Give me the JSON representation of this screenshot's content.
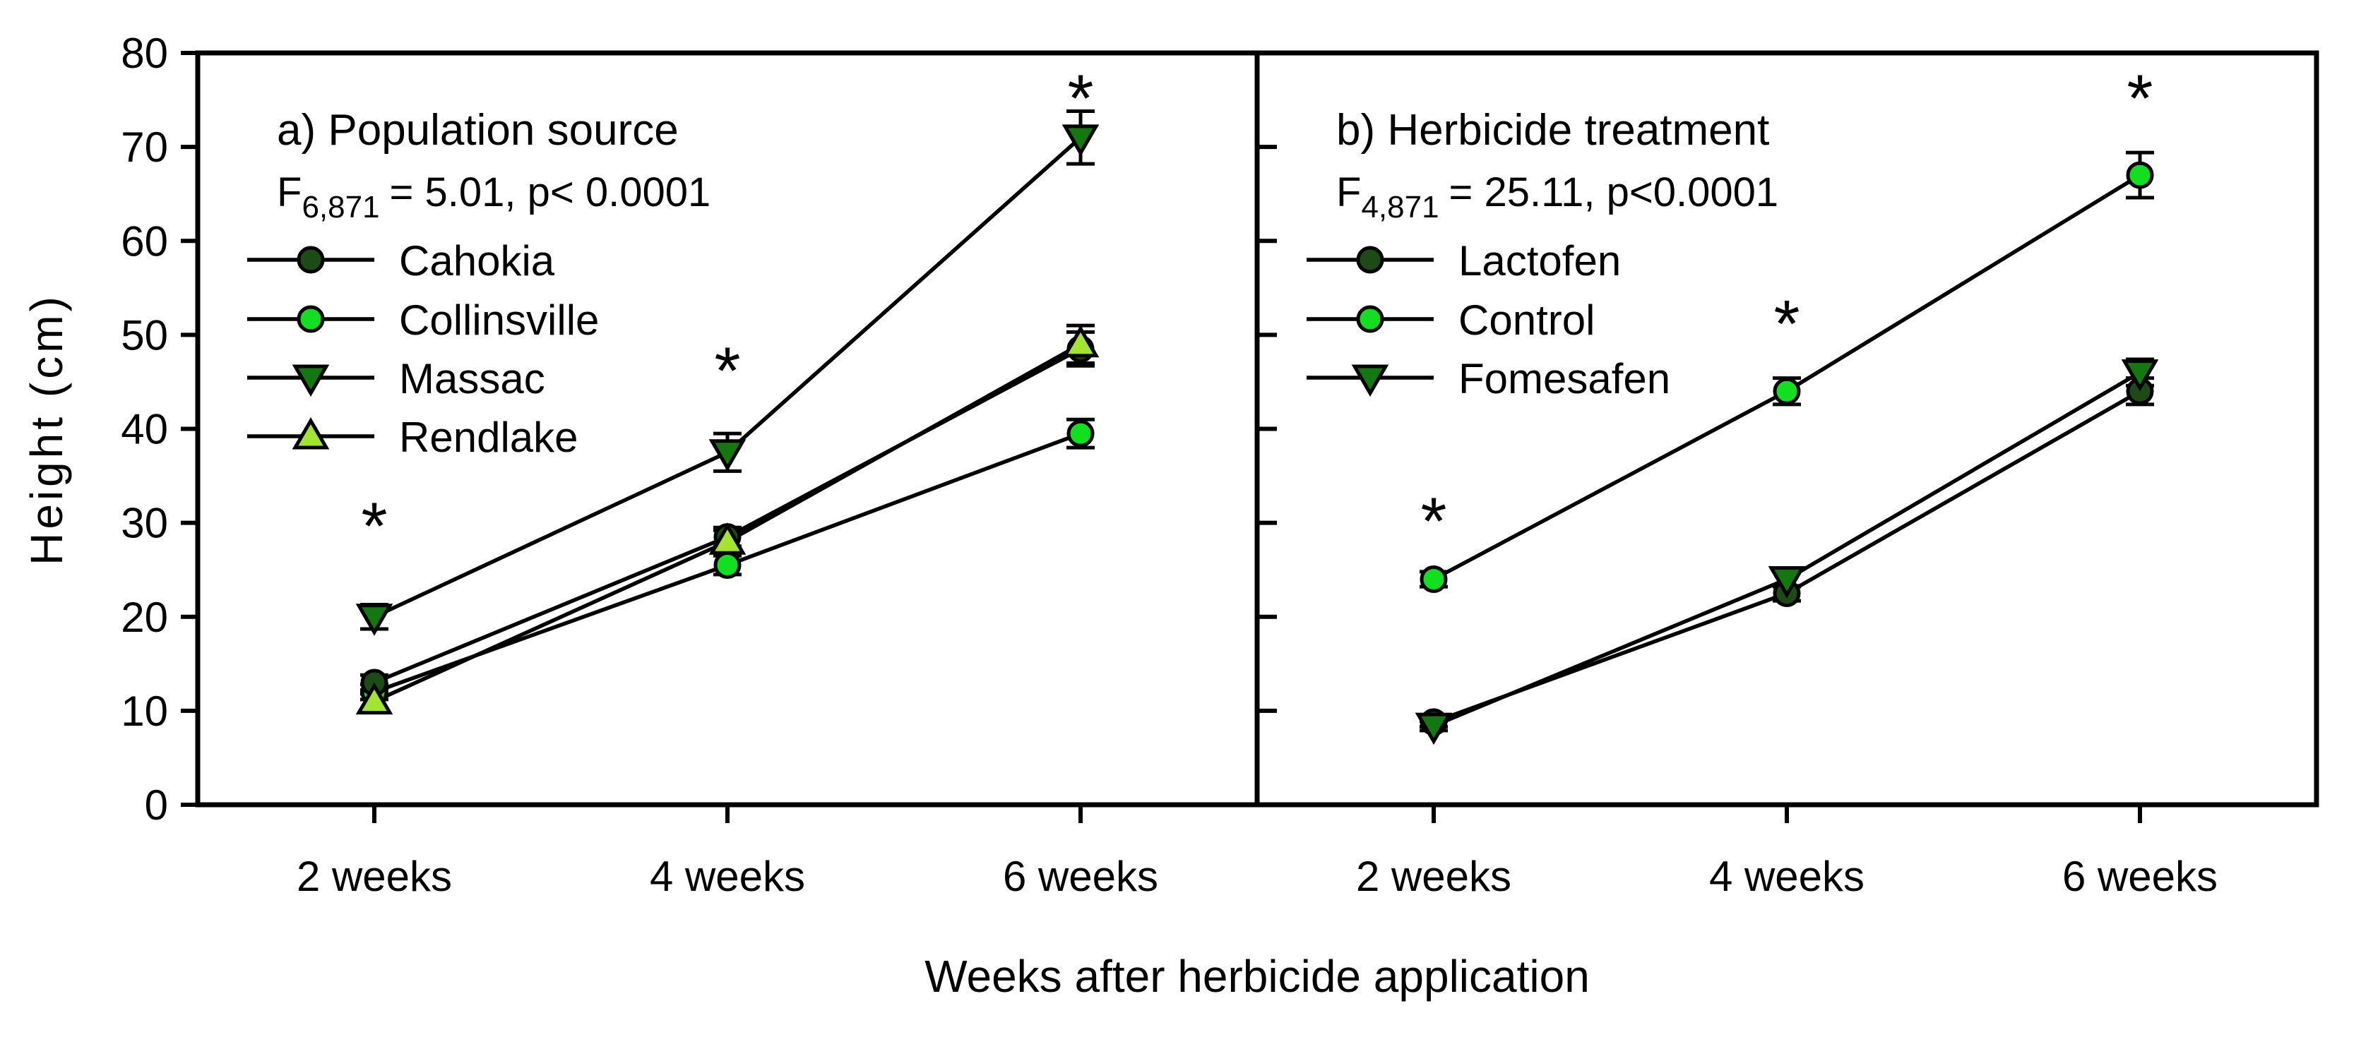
{
  "figure": {
    "y_axis": {
      "label": "Height (cm)",
      "min": 0,
      "max": 80,
      "tick_step": 10,
      "tick_labels": [
        "0",
        "10",
        "20",
        "30",
        "40",
        "50",
        "60",
        "70",
        "80"
      ]
    },
    "x_axis": {
      "label": "Weeks after herbicide application",
      "categories": [
        "2 weeks",
        "4 weeks",
        "6 weeks"
      ]
    },
    "colors": {
      "dark_green": "#1d4b15",
      "bright_green": "#12df1f",
      "medium_green": "#13790f",
      "yellow_green": "#a2e431",
      "axis": "#000000",
      "background": "#ffffff"
    }
  },
  "chart_data": [
    {
      "type": "line",
      "panel_label": "a",
      "title": "a) Population source",
      "f_stat": {
        "base": "F",
        "subscript": "6,871",
        "rest": "= 5.01, p< 0.0001"
      },
      "categories": [
        "2 weeks",
        "4 weeks",
        "6 weeks"
      ],
      "xlabel": "Weeks after herbicide application",
      "ylabel": "Height (cm)",
      "ylim": [
        0,
        80
      ],
      "ytick_step": 10,
      "grid": false,
      "legend_position": "upper-left",
      "series": [
        {
          "name": "Cahokia",
          "marker": "circle",
          "color": "#1d4b15",
          "values": [
            13.0,
            28.5,
            48.5
          ],
          "errors": [
            0.8,
            1.0,
            1.8
          ]
        },
        {
          "name": "Collinsville",
          "marker": "circle",
          "color": "#12df1f",
          "values": [
            12.0,
            25.5,
            39.5
          ],
          "errors": [
            0.8,
            1.0,
            1.5
          ]
        },
        {
          "name": "Massac",
          "marker": "triangle-down",
          "color": "#13790f",
          "values": [
            20.0,
            37.5,
            71.0
          ],
          "errors": [
            1.3,
            2.0,
            2.8
          ]
        },
        {
          "name": "Rendlake",
          "marker": "triangle-up",
          "color": "#a2e431",
          "values": [
            11.0,
            28.0,
            49.0
          ],
          "errors": [
            0.8,
            1.2,
            2.0
          ]
        }
      ],
      "significance": [
        {
          "category": "2 weeks",
          "symbol": "*",
          "y": 31.0
        },
        {
          "category": "4 weeks",
          "symbol": "*",
          "y": 47.5
        },
        {
          "category": "6 weeks",
          "symbol": "*",
          "y": 76.5
        }
      ]
    },
    {
      "type": "line",
      "panel_label": "b",
      "title": "b) Herbicide treatment",
      "f_stat": {
        "base": "F",
        "subscript": "4,871",
        "rest": "= 25.11, p<0.0001"
      },
      "categories": [
        "2 weeks",
        "4 weeks",
        "6 weeks"
      ],
      "xlabel": "Weeks after herbicide application",
      "ylabel": "Height (cm)",
      "ylim": [
        0,
        80
      ],
      "ytick_step": 10,
      "grid": false,
      "legend_position": "upper-left",
      "series": [
        {
          "name": "Lactofen",
          "marker": "circle",
          "color": "#1d4b15",
          "values": [
            8.8,
            22.5,
            44.0
          ],
          "errors": [
            0.5,
            0.8,
            1.4
          ]
        },
        {
          "name": "Control",
          "marker": "circle",
          "color": "#12df1f",
          "values": [
            24.0,
            44.0,
            67.0
          ],
          "errors": [
            0.8,
            1.4,
            2.4
          ]
        },
        {
          "name": "Fomesafen",
          "marker": "triangle-down",
          "color": "#13790f",
          "values": [
            8.4,
            24.0,
            46.0
          ],
          "errors": [
            0.5,
            0.8,
            1.4
          ]
        }
      ],
      "significance": [
        {
          "category": "2 weeks",
          "symbol": "*",
          "y": 31.5
        },
        {
          "category": "4 weeks",
          "symbol": "*",
          "y": 52.5
        },
        {
          "category": "6 weeks",
          "symbol": "*",
          "y": 76.5
        }
      ]
    }
  ]
}
